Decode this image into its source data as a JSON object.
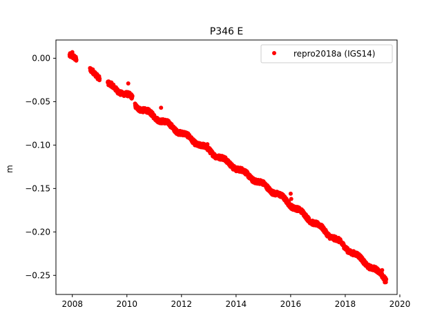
{
  "chart_data": {
    "type": "scatter",
    "title": "P346 E",
    "xlabel": "",
    "ylabel": "m",
    "xlim": [
      2007.4,
      2019.9
    ],
    "ylim": [
      -0.272,
      0.021
    ],
    "xticks": [
      2008,
      2010,
      2012,
      2014,
      2016,
      2018,
      2020
    ],
    "xtick_labels": [
      "2008",
      "2010",
      "2012",
      "2014",
      "2016",
      "2018",
      "2020"
    ],
    "yticks": [
      0.0,
      -0.05,
      -0.1,
      -0.15,
      -0.2,
      -0.25
    ],
    "ytick_labels": [
      "0.00",
      "−0.05",
      "−0.10",
      "−0.15",
      "−0.20",
      "−0.25"
    ],
    "legend": {
      "placement": "top-right",
      "entries": [
        "repro2018a (IGS14)"
      ]
    },
    "grid": false,
    "series": [
      {
        "name": "repro2018a (IGS14)",
        "color": "#ff0000",
        "marker": "circle",
        "segments": [
          {
            "x_start": 2007.9,
            "x_end": 2008.15,
            "y_start": 0.002,
            "y_end": -0.002
          },
          {
            "x_start": 2008.65,
            "x_end": 2009.0,
            "y_start": -0.015,
            "y_end": -0.022
          },
          {
            "x_start": 2009.3,
            "x_end": 2010.2,
            "y_start": -0.03,
            "y_end": -0.046
          },
          {
            "x_start": 2010.3,
            "x_end": 2011.5,
            "y_start": -0.054,
            "y_end": -0.076
          },
          {
            "x_start": 2011.5,
            "x_end": 2015.5,
            "y_start": -0.076,
            "y_end": -0.156
          },
          {
            "x_start": 2015.5,
            "x_end": 2019.5,
            "y_start": -0.156,
            "y_end": -0.254
          }
        ],
        "outliers": [
          {
            "x": 2008.0,
            "y": 0.007
          },
          {
            "x": 2010.05,
            "y": -0.029
          },
          {
            "x": 2011.25,
            "y": -0.057
          },
          {
            "x": 2012.95,
            "y": -0.099
          },
          {
            "x": 2016.0,
            "y": -0.156
          },
          {
            "x": 2016.02,
            "y": -0.162
          },
          {
            "x": 2019.35,
            "y": -0.244
          },
          {
            "x": 2019.45,
            "y": -0.258
          }
        ]
      }
    ]
  }
}
